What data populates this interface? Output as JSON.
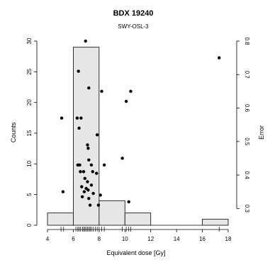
{
  "chart_data": {
    "type": "histogram",
    "title": "BDX 19240",
    "subtitle": "SWY-OSL-3",
    "xlabel": "Equivalent dose [Gy]",
    "ylabel_left": "Counts",
    "ylabel_right": "Error",
    "xlim": [
      4,
      18
    ],
    "ylim_counts": [
      0,
      30
    ],
    "ylim_error": [
      0.25,
      0.8
    ],
    "x_ticks": [
      4,
      6,
      8,
      10,
      12,
      14,
      16,
      18
    ],
    "y_ticks_counts": [
      0,
      5,
      10,
      15,
      20,
      25,
      30
    ],
    "y_ticks_error": [
      0.3,
      0.4,
      0.5,
      0.6,
      0.7,
      0.8
    ],
    "bar_color": "#e6e6e6",
    "histogram": [
      {
        "x0": 4,
        "x1": 6,
        "count": 2
      },
      {
        "x0": 6,
        "x1": 8,
        "count": 29
      },
      {
        "x0": 8,
        "x1": 10,
        "count": 4
      },
      {
        "x0": 10,
        "x1": 12,
        "count": 2
      },
      {
        "x0": 12,
        "x1": 16,
        "count": 0
      },
      {
        "x0": 16,
        "x1": 18,
        "count": 1
      }
    ],
    "points": [
      {
        "x": 6.95,
        "y": 0.8
      },
      {
        "x": 6.4,
        "y": 0.71
      },
      {
        "x": 7.2,
        "y": 0.66
      },
      {
        "x": 8.2,
        "y": 0.65
      },
      {
        "x": 10.45,
        "y": 0.65
      },
      {
        "x": 10.1,
        "y": 0.62
      },
      {
        "x": 5.1,
        "y": 0.57
      },
      {
        "x": 6.3,
        "y": 0.57
      },
      {
        "x": 6.6,
        "y": 0.57
      },
      {
        "x": 6.45,
        "y": 0.54
      },
      {
        "x": 7.85,
        "y": 0.52
      },
      {
        "x": 7.1,
        "y": 0.49
      },
      {
        "x": 7.15,
        "y": 0.48
      },
      {
        "x": 9.8,
        "y": 0.45
      },
      {
        "x": 7.2,
        "y": 0.445
      },
      {
        "x": 6.35,
        "y": 0.43
      },
      {
        "x": 6.5,
        "y": 0.43
      },
      {
        "x": 7.4,
        "y": 0.43
      },
      {
        "x": 8.4,
        "y": 0.43
      },
      {
        "x": 6.55,
        "y": 0.41
      },
      {
        "x": 6.8,
        "y": 0.41
      },
      {
        "x": 7.5,
        "y": 0.41
      },
      {
        "x": 7.8,
        "y": 0.405
      },
      {
        "x": 6.9,
        "y": 0.39
      },
      {
        "x": 7.1,
        "y": 0.38
      },
      {
        "x": 7.4,
        "y": 0.37
      },
      {
        "x": 6.65,
        "y": 0.365
      },
      {
        "x": 7.0,
        "y": 0.36
      },
      {
        "x": 7.15,
        "y": 0.355
      },
      {
        "x": 5.2,
        "y": 0.35
      },
      {
        "x": 6.85,
        "y": 0.35
      },
      {
        "x": 7.55,
        "y": 0.345
      },
      {
        "x": 8.1,
        "y": 0.34
      },
      {
        "x": 6.7,
        "y": 0.335
      },
      {
        "x": 7.2,
        "y": 0.33
      },
      {
        "x": 10.3,
        "y": 0.32
      },
      {
        "x": 7.3,
        "y": 0.31
      },
      {
        "x": 7.95,
        "y": 0.31
      },
      {
        "x": 17.3,
        "y": 0.75
      }
    ],
    "rug": [
      5.05,
      5.25,
      6.2,
      6.35,
      6.45,
      6.55,
      6.7,
      6.8,
      6.9,
      7.0,
      7.1,
      7.2,
      7.3,
      7.4,
      7.55,
      7.7,
      7.85,
      8.0,
      8.2,
      8.4,
      9.8,
      10.1,
      10.3,
      10.45,
      17.3
    ]
  }
}
